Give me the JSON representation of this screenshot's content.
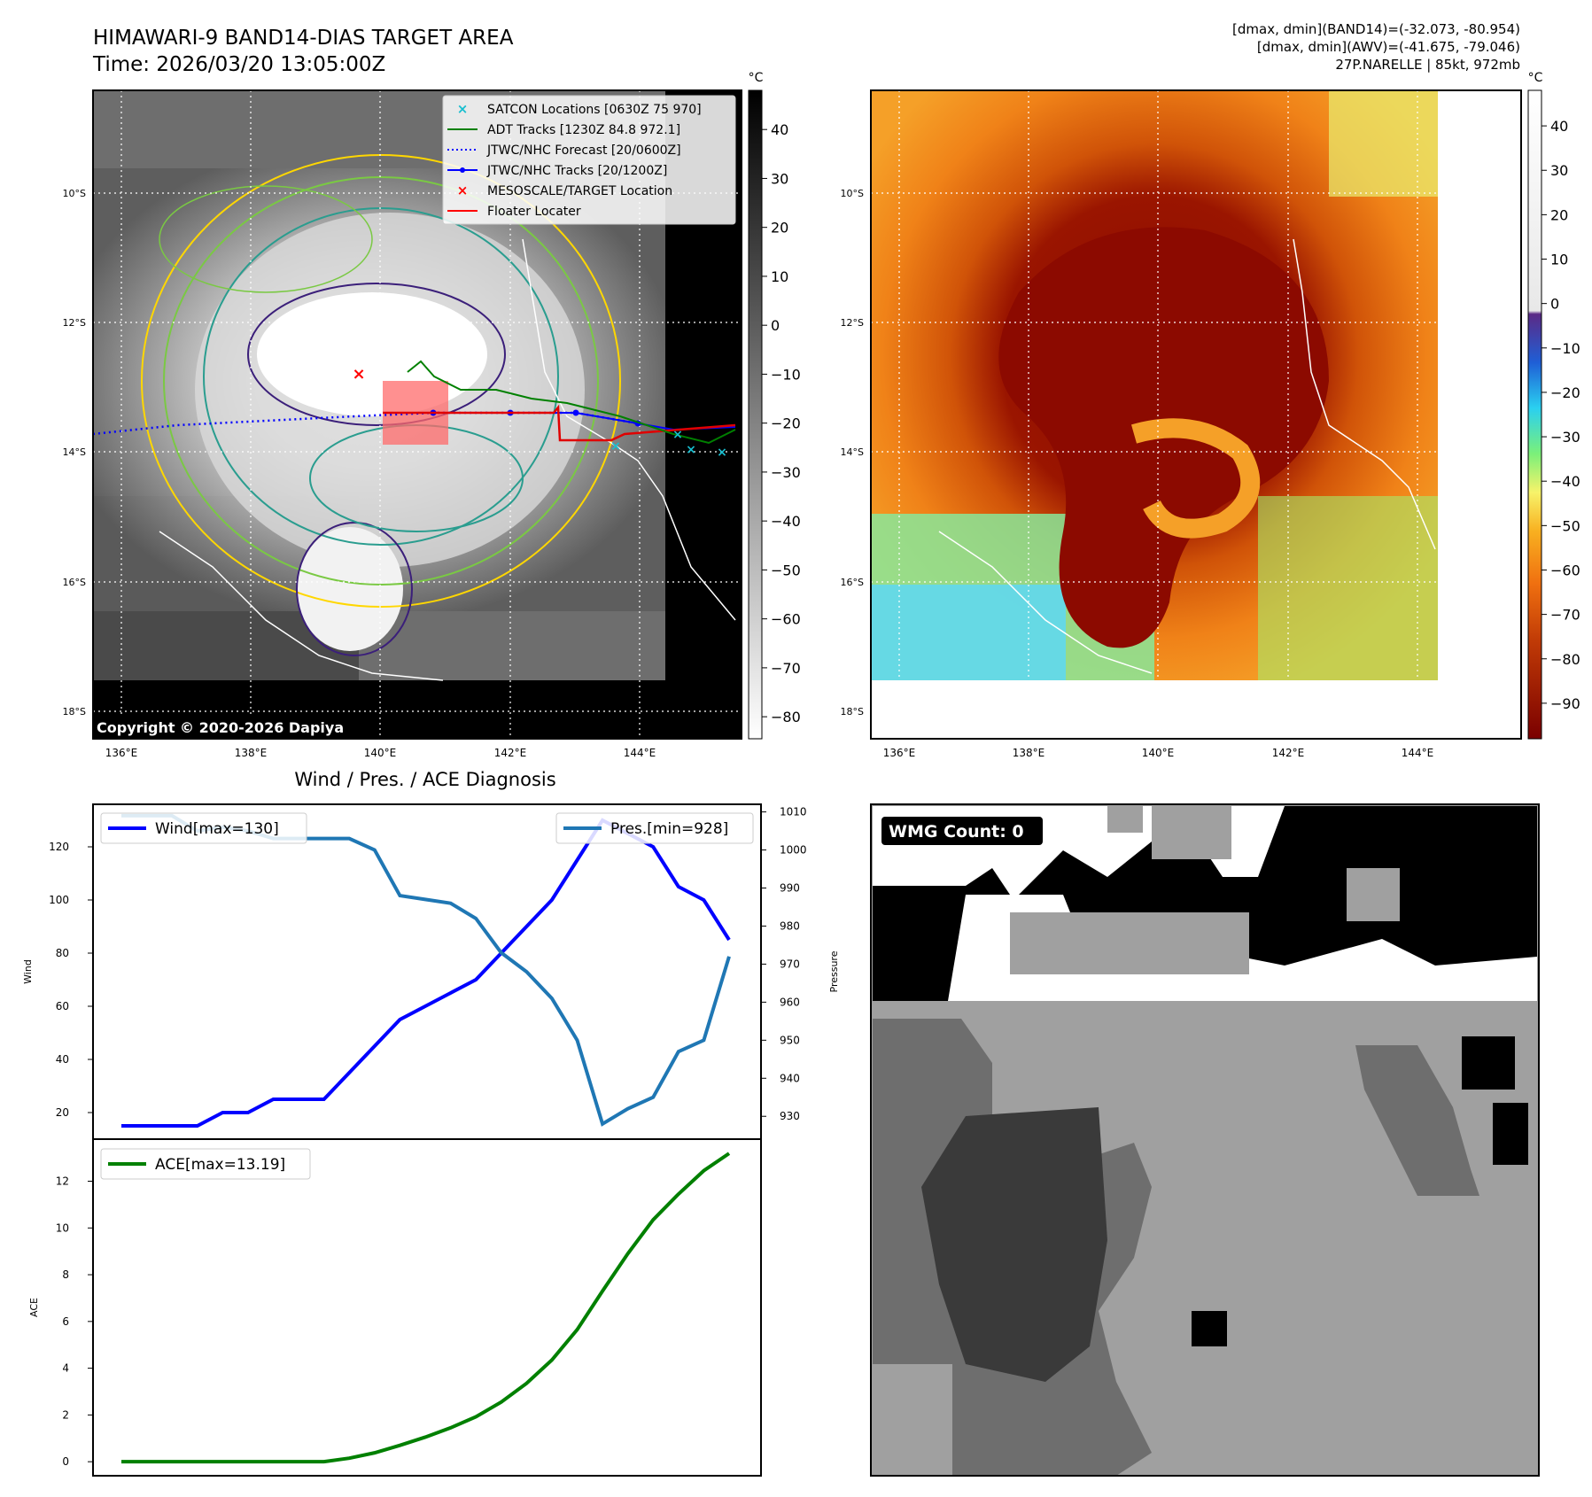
{
  "header": {
    "title_line1": "HIMAWARI-9 BAND14-DIAS TARGET AREA",
    "title_line2": "Time: 2026/03/20 13:05:00Z",
    "info_line1": "[dmax, dmin](BAND14)=(-32.073, -80.954)",
    "info_line2": "[dmax, dmin](AWV)=(-41.675, -79.046)",
    "info_line3": "27P.NARELLE | 85kt, 972mb"
  },
  "map_axes": {
    "lat_labels": [
      "10°S",
      "12°S",
      "14°S",
      "16°S",
      "18°S"
    ],
    "lon_labels": [
      "136°E",
      "138°E",
      "140°E",
      "142°E",
      "144°E"
    ]
  },
  "band14_panel": {
    "unit": "°C",
    "colorbar_ticks": [
      "40",
      "30",
      "20",
      "10",
      "0",
      "−10",
      "−20",
      "−30",
      "−40",
      "−50",
      "−60",
      "−70",
      "−80"
    ],
    "copyright": "Copyright © 2020-2026 Dapiya",
    "legend": [
      {
        "label": "SATCON Locations [0630Z 75 970]",
        "color": "#17becf",
        "marker": "x"
      },
      {
        "label": "ADT Tracks [1230Z 84.8 972.1]",
        "color": "#008000",
        "marker": "line"
      },
      {
        "label": "JTWC/NHC Forecast [20/0600Z]",
        "color": "#0000ff",
        "marker": "dotted"
      },
      {
        "label": "JTWC/NHC Tracks [20/1200Z]",
        "color": "#0000ff",
        "marker": "dotline"
      },
      {
        "label": "MESOSCALE/TARGET Location",
        "color": "#ff0000",
        "marker": "x"
      },
      {
        "label": "Floater Locater",
        "color": "#ff0000",
        "marker": "line"
      }
    ]
  },
  "awv_panel": {
    "unit": "°C",
    "colorbar_ticks": [
      "40",
      "30",
      "20",
      "10",
      "0",
      "−10",
      "−20",
      "−30",
      "−40",
      "−50",
      "−60",
      "−70",
      "−80",
      "−90"
    ]
  },
  "wmg_panel": {
    "label": "WMG Count: 0"
  },
  "chart_data": [
    {
      "type": "line",
      "title": "Wind / Pres. / ACE Diagnosis",
      "x": [
        0,
        1,
        2,
        3,
        4,
        5,
        6,
        7,
        8,
        9,
        10,
        11,
        12,
        13,
        14,
        15,
        16,
        17,
        18,
        19,
        20,
        21,
        22,
        23,
        24
      ],
      "series": [
        {
          "name": "Wind[max=130]",
          "axis": "left",
          "color": "#0000ff",
          "values": [
            15,
            15,
            15,
            15,
            20,
            20,
            25,
            25,
            25,
            35,
            45,
            55,
            60,
            65,
            70,
            80,
            90,
            100,
            115,
            130,
            125,
            120,
            105,
            100,
            85
          ]
        },
        {
          "name": "Pres.[min=928]",
          "axis": "right",
          "color": "#1f77b4",
          "values": [
            1009,
            1009,
            1009,
            1005,
            1006,
            1005,
            1003,
            1003,
            1003,
            1003,
            1000,
            988,
            987,
            986,
            982,
            973,
            968,
            961,
            950,
            928,
            932,
            935,
            947,
            950,
            972
          ]
        }
      ],
      "ylabel": "Wind",
      "y2label": "Pressure",
      "yticks": [
        20,
        40,
        60,
        80,
        100,
        120
      ],
      "y2ticks": [
        930,
        940,
        950,
        960,
        970,
        980,
        990,
        1000,
        1010
      ],
      "ylim": [
        10,
        136
      ],
      "y2lim": [
        924,
        1012
      ]
    },
    {
      "type": "line",
      "series": [
        {
          "name": "ACE[max=13.19]",
          "color": "#008000",
          "values": [
            0,
            0,
            0,
            0,
            0,
            0,
            0,
            0,
            0,
            0.15,
            0.38,
            0.7,
            1.05,
            1.45,
            1.92,
            2.55,
            3.35,
            4.35,
            5.65,
            7.3,
            8.9,
            10.35,
            11.45,
            12.45,
            13.19
          ]
        }
      ],
      "ylabel": "ACE",
      "yticks": [
        0,
        2,
        4,
        6,
        8,
        10,
        12
      ],
      "ylim": [
        -0.6,
        13.8
      ]
    }
  ]
}
